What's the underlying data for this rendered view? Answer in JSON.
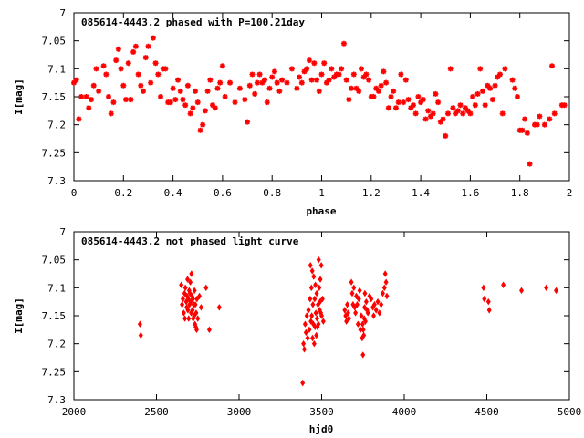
{
  "chart_data": [
    {
      "type": "scatter",
      "title": "085614-4443.2 phased with P=100.21day",
      "xlabel": "phase",
      "ylabel": "I[mag]",
      "xlim": [
        0,
        2
      ],
      "ylim": [
        7.3,
        7.0
      ],
      "y_inverted": true,
      "grid": false,
      "marker": "asterisk",
      "color": "#ff0000",
      "xticks": [
        0,
        0.2,
        0.4,
        0.6,
        0.8,
        1,
        1.2,
        1.4,
        1.6,
        1.8,
        2
      ],
      "xtick_labels": [
        "0",
        "0.2",
        "0.4",
        "0.6",
        "0.8",
        "1",
        "1.2",
        "1.4",
        "1.6",
        "1.8",
        "2"
      ],
      "yticks": [
        7,
        7.05,
        7.1,
        7.15,
        7.2,
        7.25,
        7.3
      ],
      "ytick_labels": [
        "7",
        "7.05",
        "7.1",
        "7.15",
        "7.2",
        "7.25",
        "7.3"
      ],
      "points": [
        [
          0.0,
          7.125
        ],
        [
          0.01,
          7.12
        ],
        [
          0.02,
          7.19
        ],
        [
          0.03,
          7.15
        ],
        [
          0.05,
          7.15
        ],
        [
          0.06,
          7.17
        ],
        [
          0.07,
          7.155
        ],
        [
          0.08,
          7.13
        ],
        [
          0.09,
          7.1
        ],
        [
          0.1,
          7.14
        ],
        [
          0.12,
          7.095
        ],
        [
          0.13,
          7.11
        ],
        [
          0.14,
          7.15
        ],
        [
          0.15,
          7.18
        ],
        [
          0.16,
          7.16
        ],
        [
          0.17,
          7.085
        ],
        [
          0.18,
          7.065
        ],
        [
          0.19,
          7.1
        ],
        [
          0.2,
          7.13
        ],
        [
          0.21,
          7.155
        ],
        [
          0.22,
          7.09
        ],
        [
          0.23,
          7.155
        ],
        [
          0.24,
          7.07
        ],
        [
          0.25,
          7.06
        ],
        [
          0.26,
          7.11
        ],
        [
          0.27,
          7.13
        ],
        [
          0.28,
          7.14
        ],
        [
          0.29,
          7.08
        ],
        [
          0.3,
          7.06
        ],
        [
          0.31,
          7.125
        ],
        [
          0.32,
          7.045
        ],
        [
          0.33,
          7.09
        ],
        [
          0.34,
          7.11
        ],
        [
          0.35,
          7.15
        ],
        [
          0.36,
          7.1
        ],
        [
          0.37,
          7.1
        ],
        [
          0.38,
          7.16
        ],
        [
          0.39,
          7.16
        ],
        [
          0.4,
          7.135
        ],
        [
          0.41,
          7.155
        ],
        [
          0.42,
          7.12
        ],
        [
          0.43,
          7.14
        ],
        [
          0.44,
          7.155
        ],
        [
          0.45,
          7.165
        ],
        [
          0.46,
          7.13
        ],
        [
          0.47,
          7.18
        ],
        [
          0.48,
          7.17
        ],
        [
          0.49,
          7.14
        ],
        [
          0.5,
          7.16
        ],
        [
          0.51,
          7.21
        ],
        [
          0.52,
          7.2
        ],
        [
          0.53,
          7.175
        ],
        [
          0.54,
          7.14
        ],
        [
          0.55,
          7.12
        ],
        [
          0.56,
          7.165
        ],
        [
          0.57,
          7.17
        ],
        [
          0.58,
          7.135
        ],
        [
          0.59,
          7.125
        ],
        [
          0.6,
          7.095
        ],
        [
          0.61,
          7.15
        ],
        [
          0.63,
          7.125
        ],
        [
          0.65,
          7.16
        ],
        [
          0.67,
          7.135
        ],
        [
          0.69,
          7.155
        ],
        [
          0.7,
          7.195
        ],
        [
          0.71,
          7.13
        ],
        [
          0.72,
          7.11
        ],
        [
          0.73,
          7.145
        ],
        [
          0.74,
          7.125
        ],
        [
          0.75,
          7.11
        ],
        [
          0.76,
          7.125
        ],
        [
          0.77,
          7.12
        ],
        [
          0.78,
          7.16
        ],
        [
          0.79,
          7.135
        ],
        [
          0.8,
          7.115
        ],
        [
          0.81,
          7.105
        ],
        [
          0.82,
          7.125
        ],
        [
          0.83,
          7.14
        ],
        [
          0.84,
          7.12
        ],
        [
          0.86,
          7.125
        ],
        [
          0.88,
          7.1
        ],
        [
          0.9,
          7.135
        ],
        [
          0.91,
          7.115
        ],
        [
          0.92,
          7.125
        ],
        [
          0.93,
          7.105
        ],
        [
          0.94,
          7.1
        ],
        [
          0.95,
          7.085
        ],
        [
          0.96,
          7.12
        ],
        [
          0.97,
          7.09
        ],
        [
          0.98,
          7.12
        ],
        [
          0.99,
          7.14
        ],
        [
          1.0,
          7.11
        ],
        [
          1.01,
          7.09
        ],
        [
          1.02,
          7.125
        ],
        [
          1.03,
          7.12
        ],
        [
          1.04,
          7.1
        ],
        [
          1.05,
          7.115
        ],
        [
          1.06,
          7.11
        ],
        [
          1.07,
          7.11
        ],
        [
          1.08,
          7.1
        ],
        [
          1.09,
          7.055
        ],
        [
          1.1,
          7.12
        ],
        [
          1.11,
          7.155
        ],
        [
          1.12,
          7.135
        ],
        [
          1.13,
          7.11
        ],
        [
          1.14,
          7.135
        ],
        [
          1.15,
          7.14
        ],
        [
          1.16,
          7.1
        ],
        [
          1.17,
          7.115
        ],
        [
          1.18,
          7.11
        ],
        [
          1.19,
          7.12
        ],
        [
          1.2,
          7.15
        ],
        [
          1.21,
          7.15
        ],
        [
          1.22,
          7.135
        ],
        [
          1.23,
          7.14
        ],
        [
          1.24,
          7.13
        ],
        [
          1.25,
          7.105
        ],
        [
          1.26,
          7.125
        ],
        [
          1.27,
          7.17
        ],
        [
          1.28,
          7.15
        ],
        [
          1.29,
          7.14
        ],
        [
          1.3,
          7.17
        ],
        [
          1.31,
          7.16
        ],
        [
          1.32,
          7.11
        ],
        [
          1.33,
          7.16
        ],
        [
          1.34,
          7.12
        ],
        [
          1.35,
          7.155
        ],
        [
          1.36,
          7.17
        ],
        [
          1.37,
          7.165
        ],
        [
          1.38,
          7.18
        ],
        [
          1.39,
          7.15
        ],
        [
          1.4,
          7.16
        ],
        [
          1.41,
          7.155
        ],
        [
          1.42,
          7.19
        ],
        [
          1.43,
          7.175
        ],
        [
          1.44,
          7.185
        ],
        [
          1.45,
          7.18
        ],
        [
          1.46,
          7.145
        ],
        [
          1.47,
          7.16
        ],
        [
          1.48,
          7.195
        ],
        [
          1.49,
          7.19
        ],
        [
          1.5,
          7.22
        ],
        [
          1.51,
          7.18
        ],
        [
          1.52,
          7.1
        ],
        [
          1.53,
          7.17
        ],
        [
          1.54,
          7.18
        ],
        [
          1.55,
          7.175
        ],
        [
          1.56,
          7.165
        ],
        [
          1.57,
          7.18
        ],
        [
          1.58,
          7.17
        ],
        [
          1.59,
          7.175
        ],
        [
          1.6,
          7.18
        ],
        [
          1.61,
          7.15
        ],
        [
          1.62,
          7.165
        ],
        [
          1.63,
          7.145
        ],
        [
          1.64,
          7.1
        ],
        [
          1.65,
          7.14
        ],
        [
          1.66,
          7.165
        ],
        [
          1.67,
          7.13
        ],
        [
          1.68,
          7.135
        ],
        [
          1.69,
          7.155
        ],
        [
          1.7,
          7.13
        ],
        [
          1.71,
          7.115
        ],
        [
          1.72,
          7.11
        ],
        [
          1.73,
          7.18
        ],
        [
          1.74,
          7.1
        ],
        [
          1.77,
          7.12
        ],
        [
          1.78,
          7.135
        ],
        [
          1.79,
          7.15
        ],
        [
          1.8,
          7.21
        ],
        [
          1.81,
          7.21
        ],
        [
          1.82,
          7.19
        ],
        [
          1.83,
          7.215
        ],
        [
          1.84,
          7.27
        ],
        [
          1.86,
          7.2
        ],
        [
          1.87,
          7.2
        ],
        [
          1.88,
          7.185
        ],
        [
          1.9,
          7.2
        ],
        [
          1.92,
          7.19
        ],
        [
          1.93,
          7.095
        ],
        [
          1.94,
          7.18
        ],
        [
          1.97,
          7.165
        ],
        [
          1.98,
          7.165
        ]
      ]
    },
    {
      "type": "scatter",
      "title": "085614-4443.2 not phased light curve",
      "xlabel": "hjd0",
      "ylabel": "I[mag]",
      "xlim": [
        2000,
        5000
      ],
      "ylim": [
        7.3,
        7.0
      ],
      "y_inverted": true,
      "grid": false,
      "marker": "diamond",
      "color": "#ff0000",
      "xticks": [
        2000,
        2500,
        3000,
        3500,
        4000,
        4500,
        5000
      ],
      "xtick_labels": [
        "2000",
        "2500",
        "3000",
        "3500",
        "4000",
        "4500",
        "5000"
      ],
      "yticks": [
        7,
        7.05,
        7.1,
        7.15,
        7.2,
        7.25,
        7.3
      ],
      "ytick_labels": [
        "7",
        "7.05",
        "7.1",
        "7.15",
        "7.2",
        "7.25",
        "7.3"
      ],
      "points": [
        [
          2400,
          7.165
        ],
        [
          2405,
          7.185
        ],
        [
          2650,
          7.095
        ],
        [
          2655,
          7.13
        ],
        [
          2660,
          7.12
        ],
        [
          2665,
          7.145
        ],
        [
          2670,
          7.11
        ],
        [
          2672,
          7.155
        ],
        [
          2675,
          7.1
        ],
        [
          2680,
          7.125
        ],
        [
          2683,
          7.135
        ],
        [
          2685,
          7.115
        ],
        [
          2688,
          7.085
        ],
        [
          2690,
          7.14
        ],
        [
          2693,
          7.12
        ],
        [
          2695,
          7.155
        ],
        [
          2698,
          7.105
        ],
        [
          2700,
          7.13
        ],
        [
          2703,
          7.11
        ],
        [
          2705,
          7.09
        ],
        [
          2708,
          7.125
        ],
        [
          2710,
          7.145
        ],
        [
          2712,
          7.075
        ],
        [
          2715,
          7.115
        ],
        [
          2718,
          7.14
        ],
        [
          2720,
          7.12
        ],
        [
          2722,
          7.155
        ],
        [
          2725,
          7.13
        ],
        [
          2728,
          7.15
        ],
        [
          2730,
          7.105
        ],
        [
          2733,
          7.165
        ],
        [
          2735,
          7.13
        ],
        [
          2738,
          7.17
        ],
        [
          2740,
          7.145
        ],
        [
          2743,
          7.175
        ],
        [
          2745,
          7.12
        ],
        [
          2750,
          7.155
        ],
        [
          2760,
          7.115
        ],
        [
          2770,
          7.135
        ],
        [
          2800,
          7.1
        ],
        [
          2820,
          7.175
        ],
        [
          2880,
          7.135
        ],
        [
          3385,
          7.27
        ],
        [
          3390,
          7.2
        ],
        [
          3395,
          7.21
        ],
        [
          3400,
          7.165
        ],
        [
          3405,
          7.18
        ],
        [
          3410,
          7.15
        ],
        [
          3415,
          7.19
        ],
        [
          3420,
          7.14
        ],
        [
          3425,
          7.175
        ],
        [
          3430,
          7.12
        ],
        [
          3432,
          7.06
        ],
        [
          3435,
          7.16
        ],
        [
          3438,
          7.1
        ],
        [
          3440,
          7.15
        ],
        [
          3443,
          7.07
        ],
        [
          3445,
          7.19
        ],
        [
          3447,
          7.13
        ],
        [
          3450,
          7.165
        ],
        [
          3452,
          7.08
        ],
        [
          3455,
          7.2
        ],
        [
          3458,
          7.12
        ],
        [
          3460,
          7.17
        ],
        [
          3462,
          7.095
        ],
        [
          3465,
          7.145
        ],
        [
          3468,
          7.185
        ],
        [
          3470,
          7.11
        ],
        [
          3472,
          7.155
        ],
        [
          3475,
          7.17
        ],
        [
          3478,
          7.13
        ],
        [
          3480,
          7.165
        ],
        [
          3482,
          7.05
        ],
        [
          3485,
          7.1
        ],
        [
          3488,
          7.14
        ],
        [
          3490,
          7.125
        ],
        [
          3492,
          7.085
        ],
        [
          3495,
          7.145
        ],
        [
          3498,
          7.06
        ],
        [
          3500,
          7.15
        ],
        [
          3505,
          7.12
        ],
        [
          3510,
          7.16
        ],
        [
          3640,
          7.14
        ],
        [
          3645,
          7.15
        ],
        [
          3650,
          7.16
        ],
        [
          3655,
          7.13
        ],
        [
          3660,
          7.145
        ],
        [
          3665,
          7.155
        ],
        [
          3680,
          7.09
        ],
        [
          3685,
          7.11
        ],
        [
          3690,
          7.13
        ],
        [
          3695,
          7.1
        ],
        [
          3700,
          7.135
        ],
        [
          3705,
          7.145
        ],
        [
          3710,
          7.115
        ],
        [
          3715,
          7.13
        ],
        [
          3720,
          7.165
        ],
        [
          3725,
          7.12
        ],
        [
          3730,
          7.105
        ],
        [
          3735,
          7.175
        ],
        [
          3740,
          7.15
        ],
        [
          3745,
          7.19
        ],
        [
          3748,
          7.165
        ],
        [
          3750,
          7.22
        ],
        [
          3752,
          7.175
        ],
        [
          3755,
          7.185
        ],
        [
          3758,
          7.155
        ],
        [
          3760,
          7.135
        ],
        [
          3762,
          7.11
        ],
        [
          3765,
          7.16
        ],
        [
          3770,
          7.125
        ],
        [
          3775,
          7.14
        ],
        [
          3780,
          7.145
        ],
        [
          3790,
          7.115
        ],
        [
          3800,
          7.12
        ],
        [
          3810,
          7.135
        ],
        [
          3815,
          7.15
        ],
        [
          3820,
          7.13
        ],
        [
          3830,
          7.14
        ],
        [
          3840,
          7.125
        ],
        [
          3850,
          7.145
        ],
        [
          3860,
          7.13
        ],
        [
          3870,
          7.11
        ],
        [
          3880,
          7.1
        ],
        [
          3885,
          7.075
        ],
        [
          3890,
          7.09
        ],
        [
          3895,
          7.115
        ],
        [
          4480,
          7.1
        ],
        [
          4485,
          7.12
        ],
        [
          4510,
          7.125
        ],
        [
          4515,
          7.14
        ],
        [
          4600,
          7.095
        ],
        [
          4710,
          7.105
        ],
        [
          4860,
          7.1
        ],
        [
          4920,
          7.105
        ]
      ]
    }
  ]
}
